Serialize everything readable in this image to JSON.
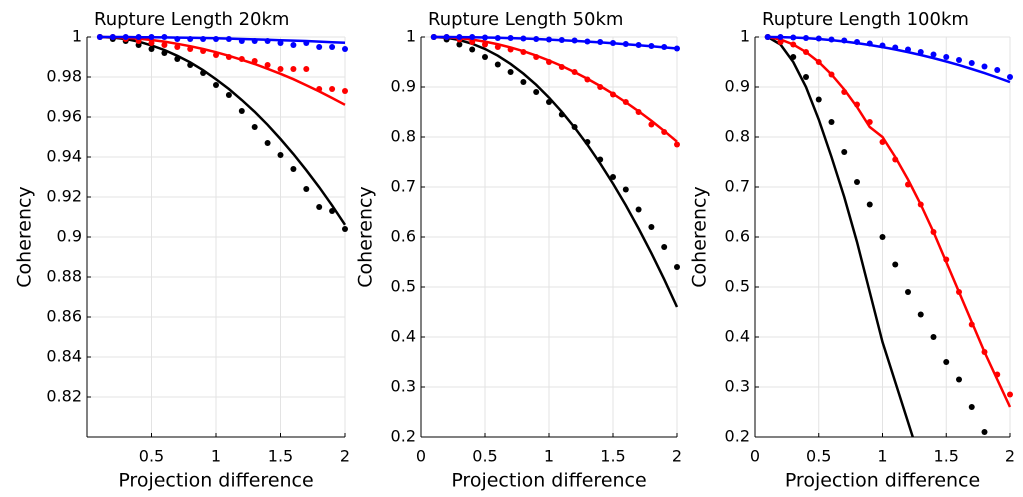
{
  "chart_data": [
    {
      "type": "line",
      "title": "Rupture Length 20km",
      "xlabel": "Projection difference",
      "ylabel": "Coherency",
      "x": [
        0.1,
        0.2,
        0.3,
        0.4,
        0.5,
        0.6,
        0.7,
        0.8,
        0.9,
        1.0,
        1.1,
        1.2,
        1.3,
        1.4,
        1.5,
        1.6,
        1.7,
        1.8,
        1.9,
        2.0
      ],
      "xlim": [
        0,
        2
      ],
      "ylim": [
        0.8,
        1
      ],
      "xticks": [
        0.5,
        1,
        1.5,
        2
      ],
      "yticks": [
        0.82,
        0.84,
        0.86,
        0.88,
        0.9,
        0.92,
        0.94,
        0.96,
        0.98,
        1
      ],
      "grid": true,
      "series": [
        {
          "color": "#000000",
          "style": "dots",
          "values": [
            1,
            0.999,
            0.998,
            0.996,
            0.994,
            0.992,
            0.989,
            0.986,
            0.982,
            0.976,
            0.971,
            0.963,
            0.955,
            0.947,
            0.941,
            0.934,
            0.924,
            0.915,
            0.913,
            0.904
          ]
        },
        {
          "color": "#000000",
          "style": "line",
          "values": [
            1,
            0.9997,
            0.999,
            0.9977,
            0.9958,
            0.9935,
            0.9906,
            0.9873,
            0.9834,
            0.9789,
            0.974,
            0.9685,
            0.9626,
            0.9561,
            0.949,
            0.9415,
            0.9334,
            0.9249,
            0.9158,
            0.9061
          ]
        },
        {
          "color": "#ff0000",
          "style": "dots",
          "values": [
            1,
            1,
            0.999,
            0.998,
            0.997,
            0.996,
            0.995,
            0.994,
            0.993,
            0.991,
            0.99,
            0.989,
            0.988,
            0.986,
            0.984,
            0.984,
            0.984,
            0.974,
            0.974,
            0.973
          ]
        },
        {
          "color": "#ff0000",
          "style": "line",
          "values": [
            1,
            0.9999,
            0.9996,
            0.9992,
            0.9985,
            0.9977,
            0.9966,
            0.9954,
            0.994,
            0.9924,
            0.9906,
            0.9886,
            0.9865,
            0.9841,
            0.9816,
            0.9789,
            0.9759,
            0.9728,
            0.9695,
            0.9661
          ]
        },
        {
          "color": "#0000ff",
          "style": "dots",
          "values": [
            1,
            1,
            1,
            1,
            1,
            1,
            0.999,
            0.999,
            0.999,
            0.999,
            0.999,
            0.998,
            0.998,
            0.998,
            0.997,
            0.996,
            0.997,
            0.995,
            0.995,
            0.994
          ]
        },
        {
          "color": "#0000ff",
          "style": "line",
          "values": [
            1,
            1,
            1,
            0.9999,
            0.9999,
            0.9998,
            0.9997,
            0.9996,
            0.9995,
            0.9994,
            0.9992,
            0.999,
            0.9988,
            0.9986,
            0.9984,
            0.9982,
            0.998,
            0.9977,
            0.9974,
            0.9971
          ]
        }
      ]
    },
    {
      "type": "line",
      "title": "Rupture Length 50km",
      "xlabel": "Projection difference",
      "ylabel": "Coherency",
      "x": [
        0.1,
        0.2,
        0.3,
        0.4,
        0.5,
        0.6,
        0.7,
        0.8,
        0.9,
        1.0,
        1.1,
        1.2,
        1.3,
        1.4,
        1.5,
        1.6,
        1.7,
        1.8,
        1.9,
        2.0
      ],
      "xlim": [
        0,
        2
      ],
      "ylim": [
        0.2,
        1
      ],
      "xticks": [
        0,
        0.5,
        1,
        1.5,
        2
      ],
      "yticks": [
        0.2,
        0.3,
        0.4,
        0.5,
        0.6,
        0.7,
        0.8,
        0.9,
        1
      ],
      "grid": true,
      "series": [
        {
          "color": "#000000",
          "style": "dots",
          "values": [
            1,
            0.995,
            0.985,
            0.975,
            0.96,
            0.945,
            0.93,
            0.91,
            0.89,
            0.87,
            0.845,
            0.82,
            0.79,
            0.755,
            0.72,
            0.695,
            0.655,
            0.62,
            0.58,
            0.54
          ]
        },
        {
          "color": "#000000",
          "style": "line",
          "values": [
            1,
            0.9985,
            0.994,
            0.9865,
            0.9761,
            0.9626,
            0.9461,
            0.9267,
            0.9043,
            0.8788,
            0.8504,
            0.819,
            0.7846,
            0.7472,
            0.7068,
            0.6634,
            0.617,
            0.5677,
            0.5153,
            0.46
          ]
        },
        {
          "color": "#ff0000",
          "style": "dots",
          "values": [
            1,
            1,
            0.995,
            0.99,
            0.985,
            0.98,
            0.975,
            0.97,
            0.96,
            0.95,
            0.94,
            0.93,
            0.915,
            0.9,
            0.885,
            0.87,
            0.85,
            0.825,
            0.81,
            0.785
          ]
        },
        {
          "color": "#ff0000",
          "style": "line",
          "values": [
            1,
            0.9994,
            0.9977,
            0.9948,
            0.9907,
            0.9855,
            0.9791,
            0.9716,
            0.9629,
            0.953,
            0.942,
            0.9298,
            0.9165,
            0.902,
            0.8863,
            0.8695,
            0.8515,
            0.8324,
            0.8121,
            0.7906
          ]
        },
        {
          "color": "#0000ff",
          "style": "dots",
          "values": [
            1,
            1,
            1,
            1,
            0.999,
            0.998,
            0.998,
            0.997,
            0.996,
            0.995,
            0.994,
            0.993,
            0.991,
            0.99,
            0.988,
            0.986,
            0.984,
            0.982,
            0.98,
            0.977
          ]
        },
        {
          "color": "#0000ff",
          "style": "line",
          "values": [
            1,
            0.9999,
            0.9997,
            0.9994,
            0.999,
            0.9984,
            0.9977,
            0.9969,
            0.9959,
            0.9948,
            0.9936,
            0.9923,
            0.9908,
            0.9892,
            0.9875,
            0.9856,
            0.9836,
            0.9815,
            0.9793,
            0.9769
          ]
        }
      ]
    },
    {
      "type": "line",
      "title": "Rupture Length 100km",
      "xlabel": "Projection difference",
      "ylabel": "Coherency",
      "x": [
        0.1,
        0.2,
        0.3,
        0.4,
        0.5,
        0.6,
        0.7,
        0.8,
        0.9,
        1.0,
        1.1,
        1.2,
        1.3,
        1.4,
        1.5,
        1.6,
        1.7,
        1.8,
        1.9,
        2.0
      ],
      "xlim": [
        0,
        2
      ],
      "ylim": [
        0.2,
        1
      ],
      "xticks": [
        0,
        0.5,
        1,
        1.5,
        2
      ],
      "yticks": [
        0.2,
        0.3,
        0.4,
        0.5,
        0.6,
        0.7,
        0.8,
        0.9,
        1
      ],
      "grid": true,
      "series": [
        {
          "color": "#000000",
          "style": "dots",
          "values": [
            1,
            0.99,
            0.96,
            0.92,
            0.875,
            0.83,
            0.77,
            0.71,
            0.665,
            0.6,
            0.545,
            0.49,
            0.445,
            0.4,
            0.35,
            0.315,
            0.26,
            0.21,
            null,
            null
          ]
        },
        {
          "color": "#000000",
          "style": "line",
          "values": [
            1,
            0.985,
            0.95,
            0.9,
            0.835,
            0.76,
            0.68,
            0.59,
            0.49,
            0.39,
            0.31,
            0.23,
            0.15,
            null,
            null,
            null,
            null,
            null,
            null,
            null
          ]
        },
        {
          "color": "#ff0000",
          "style": "dots",
          "values": [
            1,
            0.99,
            0.985,
            0.97,
            0.95,
            0.925,
            0.89,
            0.865,
            0.83,
            0.79,
            0.755,
            0.705,
            0.665,
            0.61,
            0.555,
            0.49,
            0.425,
            0.37,
            0.325,
            0.285
          ]
        },
        {
          "color": "#ff0000",
          "style": "line",
          "values": [
            1,
            0.995,
            0.985,
            0.97,
            0.95,
            0.925,
            0.895,
            0.86,
            0.82,
            0.8,
            0.76,
            0.715,
            0.665,
            0.61,
            0.55,
            0.49,
            0.43,
            0.37,
            0.315,
            0.26
          ]
        },
        {
          "color": "#0000ff",
          "style": "dots",
          "values": [
            1,
            1,
            0.999,
            0.998,
            0.997,
            0.995,
            0.993,
            0.99,
            0.987,
            0.983,
            0.979,
            0.975,
            0.97,
            0.965,
            0.96,
            0.954,
            0.948,
            0.941,
            0.934,
            0.92
          ]
        },
        {
          "color": "#0000ff",
          "style": "line",
          "values": [
            1,
            0.9998,
            0.999,
            0.9978,
            0.996,
            0.9938,
            0.991,
            0.9878,
            0.984,
            0.9798,
            0.975,
            0.9698,
            0.964,
            0.9578,
            0.951,
            0.9438,
            0.936,
            0.9278,
            0.919,
            0.9098
          ]
        }
      ]
    }
  ]
}
